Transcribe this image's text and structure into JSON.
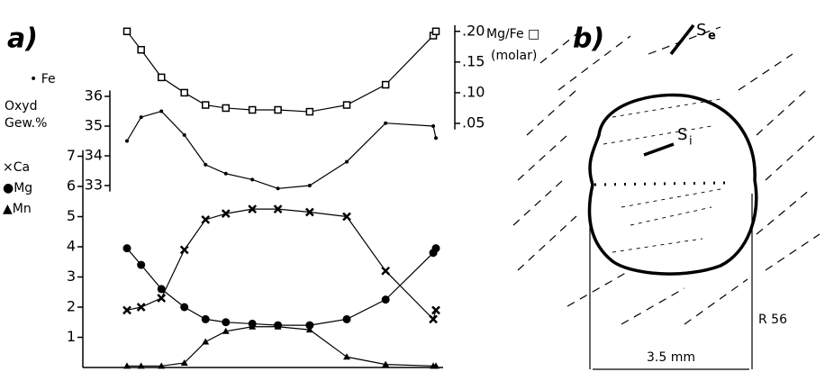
{
  "chart_data": [
    {
      "type": "line",
      "label": "a)",
      "y_label": [
        "Mg/Fe □",
        "(molar)"
      ],
      "x": [
        0,
        0.16,
        0.39,
        0.65,
        0.89,
        1.12,
        1.42,
        1.71,
        2.07,
        2.49,
        2.93,
        3.47,
        3.5
      ],
      "xlim": [
        0,
        3.5
      ],
      "series": [
        {
          "name": null,
          "marker": "square",
          "color": "#000000",
          "values": [
            0.2,
            0.17,
            0.125,
            0.1,
            0.08,
            0.075,
            0.072,
            0.072,
            0.069,
            0.08,
            0.113,
            0.193,
            0.2
          ]
        }
      ],
      "ylim": [
        0.04,
        0.21
      ],
      "yticks": [
        {
          "value": 0.2,
          "label": ".20"
        },
        {
          "value": 0.15,
          "label": ".15"
        },
        {
          "value": 0.1,
          "label": ".10"
        },
        {
          "value": 0.05,
          "label": ".05"
        }
      ]
    },
    {
      "type": "line",
      "y_label": [
        "Oxyd",
        "Gew.%"
      ],
      "x": [
        0,
        0.16,
        0.39,
        0.65,
        0.89,
        1.12,
        1.42,
        1.71,
        2.07,
        2.49,
        2.93,
        3.47,
        3.5
      ],
      "xlim": [
        0,
        3.5
      ],
      "series": [
        {
          "name": "• Fe",
          "marker": "dot",
          "color": "#000000",
          "values": [
            34.5,
            35.3,
            35.5,
            34.7,
            33.7,
            33.4,
            33.2,
            32.9,
            33.0,
            33.8,
            35.1,
            35.0,
            34.6
          ]
        }
      ],
      "ylim": [
        32.8,
        36.2
      ],
      "yticks": [
        36,
        35,
        34,
        33
      ]
    },
    {
      "type": "line",
      "x": [
        0,
        0.16,
        0.39,
        0.65,
        0.89,
        1.12,
        1.42,
        1.71,
        2.07,
        2.49,
        2.93,
        3.47,
        3.5
      ],
      "xlim": [
        0,
        3.5
      ],
      "series": [
        {
          "name": "×Ca",
          "marker": "cross",
          "color": "#000000",
          "values": [
            1.9,
            2.0,
            2.3,
            3.9,
            4.9,
            5.1,
            5.25,
            5.25,
            5.15,
            5.0,
            3.2,
            1.6,
            1.9
          ]
        },
        {
          "name": "●Mg",
          "marker": "circle",
          "color": "#000000",
          "values": [
            3.95,
            3.4,
            2.6,
            2.0,
            1.6,
            1.5,
            1.45,
            1.4,
            1.4,
            1.6,
            2.25,
            3.8,
            3.95
          ]
        },
        {
          "name": "▲Mn",
          "marker": "triangle",
          "color": "#000000",
          "values": [
            0.05,
            0.05,
            0.05,
            0.15,
            0.85,
            1.2,
            1.35,
            1.35,
            1.25,
            0.35,
            0.1,
            0.05,
            0.05
          ]
        }
      ],
      "ylim": [
        0,
        7.2
      ],
      "yticks": [
        7,
        6,
        5,
        4,
        3,
        2,
        1
      ]
    }
  ],
  "panel_b": {
    "label": "b)",
    "se": {
      "text": "S",
      "sub": "e"
    },
    "si": {
      "text": "S",
      "sub": "i"
    },
    "scale": "3.5 mm",
    "sample": "R 56"
  }
}
